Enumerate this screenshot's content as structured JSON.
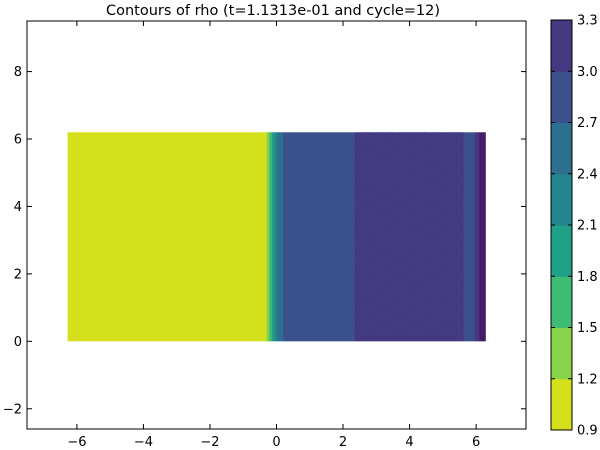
{
  "chart_data": {
    "type": "contour",
    "title": "Contours of rho (t=1.1313e-01 and cycle=12)",
    "xlim": [
      -7.5,
      7.5
    ],
    "ylim": [
      -2.6,
      9.5
    ],
    "xticks": [
      -6,
      -4,
      -2,
      0,
      2,
      4,
      6
    ],
    "yticks": [
      -2,
      0,
      2,
      4,
      6,
      8
    ],
    "xtick_labels": [
      "−6",
      "−4",
      "−2",
      "0",
      "2",
      "4",
      "6"
    ],
    "ytick_labels": [
      "−2",
      "0",
      "2",
      "4",
      "6",
      "8"
    ],
    "domain": {
      "x": [
        -6.28,
        6.28
      ],
      "y": [
        0,
        6.2
      ]
    },
    "levels": [
      0.9,
      1.2,
      1.5,
      1.8,
      2.1,
      2.4,
      2.7,
      3.0,
      3.3
    ],
    "level_labels": [
      "0.9",
      "1.2",
      "1.5",
      "1.8",
      "2.1",
      "2.4",
      "2.7",
      "3.0",
      "3.3"
    ],
    "colors": [
      "#d4e01c",
      "#87d44a",
      "#3fbc73",
      "#1fa187",
      "#25858e",
      "#2d6f8e",
      "#3b518b",
      "#453781",
      "#471a66"
    ],
    "bands": [
      {
        "x0": -6.28,
        "x1": -0.3,
        "level": 0
      },
      {
        "x0": -0.3,
        "x1": -0.22,
        "level": 1
      },
      {
        "x0": -0.22,
        "x1": -0.14,
        "level": 2
      },
      {
        "x0": -0.14,
        "x1": -0.06,
        "level": 3
      },
      {
        "x0": -0.06,
        "x1": 0.02,
        "level": 4
      },
      {
        "x0": 0.02,
        "x1": 0.2,
        "level": 5
      },
      {
        "x0": 0.2,
        "x1": 2.35,
        "level": 6
      },
      {
        "x0": 2.35,
        "x1": 5.62,
        "level": 7,
        "striped": true
      },
      {
        "x0": 5.62,
        "x1": 5.96,
        "level": 6
      },
      {
        "x0": 5.96,
        "x1": 6.1,
        "level": 7
      },
      {
        "x0": 6.1,
        "x1": 6.28,
        "level": 8
      }
    ]
  }
}
